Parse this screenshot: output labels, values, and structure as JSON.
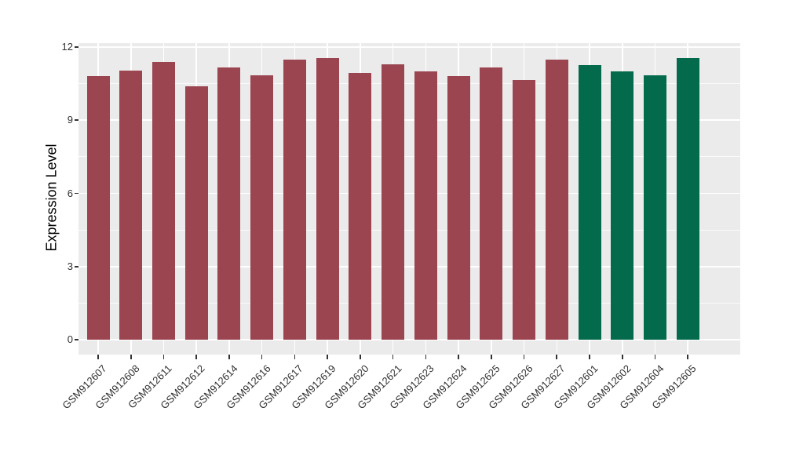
{
  "figure": {
    "background_color": "#ffffff",
    "panel_background_color": "#ebebeb",
    "gridline_color": "#ffffff",
    "axis_text_color": "#303030",
    "tick_mark_color": "#333333"
  },
  "chart_data": {
    "type": "bar",
    "title": "",
    "xlabel": "",
    "ylabel": "Expression Level",
    "categories": [
      "GSM912607",
      "GSM912608",
      "GSM912611",
      "GSM912612",
      "GSM912614",
      "GSM912616",
      "GSM912617",
      "GSM912619",
      "GSM912620",
      "GSM912621",
      "GSM912623",
      "GSM912624",
      "GSM912625",
      "GSM912626",
      "GSM912627",
      "GSM912601",
      "GSM912602",
      "GSM912604",
      "GSM912605"
    ],
    "values": [
      10.8,
      11.05,
      11.4,
      10.4,
      11.15,
      10.85,
      11.5,
      11.55,
      10.95,
      11.3,
      11.0,
      10.8,
      11.15,
      10.65,
      11.5,
      11.25,
      11.0,
      10.85,
      11.55
    ],
    "bar_colors": [
      "#9b4551",
      "#9b4551",
      "#9b4551",
      "#9b4551",
      "#9b4551",
      "#9b4551",
      "#9b4551",
      "#9b4551",
      "#9b4551",
      "#9b4551",
      "#9b4551",
      "#9b4551",
      "#9b4551",
      "#9b4551",
      "#9b4551",
      "#046a4c",
      "#046a4c",
      "#046a4c",
      "#046a4c"
    ],
    "groups": [
      {
        "name": "maroon-group",
        "color": "#9b4551",
        "sample_count": 15
      },
      {
        "name": "green-group",
        "color": "#046a4c",
        "sample_count": 4
      }
    ],
    "ylim": [
      0,
      12
    ],
    "y_major_ticks": [
      0,
      3,
      6,
      9,
      12
    ],
    "y_minor_ticks": [
      1.5,
      4.5,
      7.5,
      10.5
    ],
    "grid": true,
    "legend": "none",
    "x_label_rotation_deg": 45
  }
}
